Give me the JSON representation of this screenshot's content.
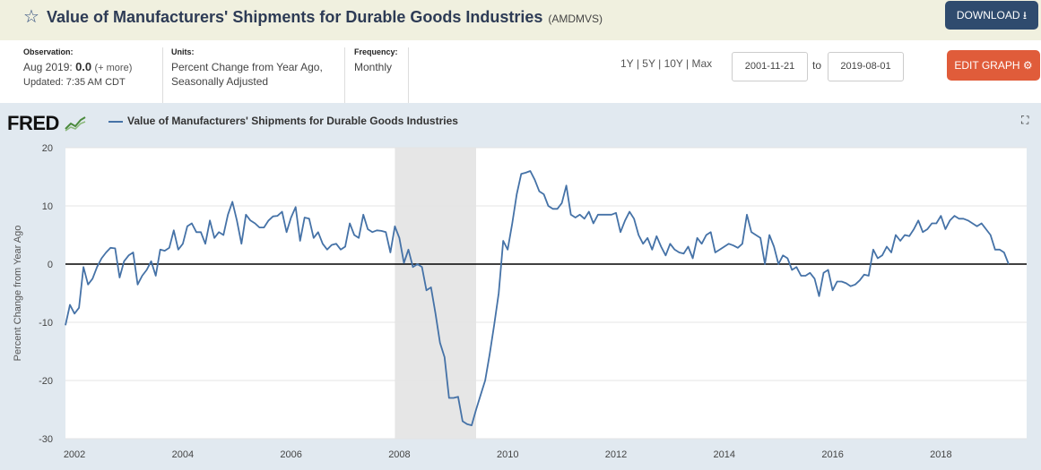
{
  "header": {
    "title": "Value of Manufacturers' Shipments for Durable Goods Industries",
    "series_id": "(AMDMVS)",
    "download_label": "DOWNLOAD",
    "star_icon": "star-icon",
    "download_icon": "download-icon"
  },
  "info": {
    "observation_label": "Observation:",
    "observation_date": "Aug 2019:",
    "observation_value": "0.0",
    "observation_more": "(+ more)",
    "updated": "Updated: 7:35 AM CDT",
    "units_label": "Units:",
    "units_line1": "Percent Change from Year Ago,",
    "units_line2": "Seasonally Adjusted",
    "frequency_label": "Frequency:",
    "frequency_value": "Monthly"
  },
  "controls": {
    "range_1y": "1Y",
    "range_5y": "5Y",
    "range_10y": "10Y",
    "range_max": "Max",
    "separator": "|",
    "start_date": "2001-11-21",
    "to_label": "to",
    "end_date": "2019-08-01",
    "edit_label": "EDIT GRAPH",
    "edit_icon": "gear-icon"
  },
  "graph": {
    "logo": "FRED",
    "logo_icon": "trend-line-icon",
    "legend_label": "Value of Manufacturers' Shipments for Durable Goods Industries",
    "fullscreen_icon": "fullscreen-icon"
  },
  "colors": {
    "series": "#4572a7",
    "recession": "#e6e6e6",
    "download_button": "#2f4b6e",
    "edit_button": "#e05c3a",
    "panel_bg": "#e1e9f0"
  },
  "chart_data": {
    "type": "line",
    "title": "",
    "xlabel": "",
    "ylabel": "Percent Change from Year Ago",
    "xlim": [
      "2001-11",
      "2019-08"
    ],
    "ylim": [
      -30,
      20
    ],
    "yticks": [
      -30,
      -20,
      -10,
      0,
      10,
      20
    ],
    "xticks": [
      "2002",
      "2004",
      "2006",
      "2008",
      "2010",
      "2012",
      "2014",
      "2016",
      "2018"
    ],
    "grid": "horizontal",
    "legend_position": "top-left",
    "zero_line": true,
    "recessions": [
      {
        "start": "2007-12",
        "end": "2009-06"
      }
    ],
    "series": [
      {
        "name": "Value of Manufacturers' Shipments for Durable Goods Industries",
        "start": "2001-11",
        "frequency": "monthly",
        "values": [
          -10.5,
          -7.0,
          -8.5,
          -7.5,
          -0.5,
          -3.5,
          -2.5,
          -0.5,
          1.0,
          2.0,
          2.8,
          2.7,
          -2.3,
          0.5,
          1.5,
          2.0,
          -3.5,
          -2.0,
          -1.0,
          0.5,
          -2.0,
          2.5,
          2.3,
          2.8,
          5.8,
          2.5,
          3.5,
          6.5,
          7.0,
          5.5,
          5.5,
          3.5,
          7.5,
          4.5,
          5.5,
          5.0,
          8.5,
          10.7,
          7.5,
          3.5,
          8.5,
          7.5,
          7.0,
          6.3,
          6.3,
          7.5,
          8.2,
          8.3,
          9.0,
          5.5,
          8.0,
          9.8,
          4.0,
          8.0,
          7.8,
          4.5,
          5.5,
          3.5,
          2.5,
          3.3,
          3.5,
          2.5,
          3.0,
          7.0,
          5.0,
          4.5,
          8.5,
          6.0,
          5.5,
          5.8,
          5.7,
          5.5,
          2.0,
          6.5,
          4.5,
          0.2,
          2.5,
          -0.5,
          0.0,
          -0.5,
          -4.5,
          -4.0,
          -8.5,
          -13.5,
          -16.0,
          -23.0,
          -23.0,
          -22.8,
          -27.0,
          -27.5,
          -27.7,
          -25.0,
          -22.5,
          -20.0,
          -15.5,
          -10.5,
          -5.0,
          4.0,
          2.5,
          7.0,
          12.0,
          15.5,
          15.7,
          16.0,
          14.5,
          12.5,
          12.0,
          10.0,
          9.5,
          9.5,
          10.5,
          13.5,
          8.5,
          8.0,
          8.5,
          7.8,
          9.0,
          7.0,
          8.5,
          8.5,
          8.5,
          8.5,
          8.8,
          5.5,
          7.5,
          9.0,
          7.8,
          5.0,
          3.5,
          4.5,
          2.5,
          4.8,
          3.0,
          1.5,
          3.5,
          2.5,
          2.0,
          1.8,
          3.0,
          1.0,
          4.5,
          3.5,
          5.0,
          5.5,
          2.0,
          2.5,
          3.0,
          3.5,
          3.2,
          2.8,
          3.5,
          8.5,
          5.5,
          5.0,
          4.5,
          0.0,
          5.0,
          3.0,
          0.0,
          1.5,
          1.0,
          -1.0,
          -0.5,
          -2.0,
          -2.0,
          -1.5,
          -2.5,
          -5.5,
          -1.5,
          -1.0,
          -4.5,
          -3.0,
          -3.0,
          -3.3,
          -3.8,
          -3.5,
          -2.8,
          -1.8,
          -2.0,
          2.5,
          1.0,
          1.5,
          3.0,
          2.0,
          5.0,
          4.0,
          5.0,
          4.8,
          6.0,
          7.5,
          5.5,
          6.0,
          7.0,
          7.0,
          8.3,
          6.0,
          7.5,
          8.3,
          7.8,
          7.8,
          7.5,
          7.0,
          6.5,
          7.0,
          6.0,
          5.0,
          2.5,
          2.5,
          2.0,
          0.0
        ]
      }
    ]
  }
}
